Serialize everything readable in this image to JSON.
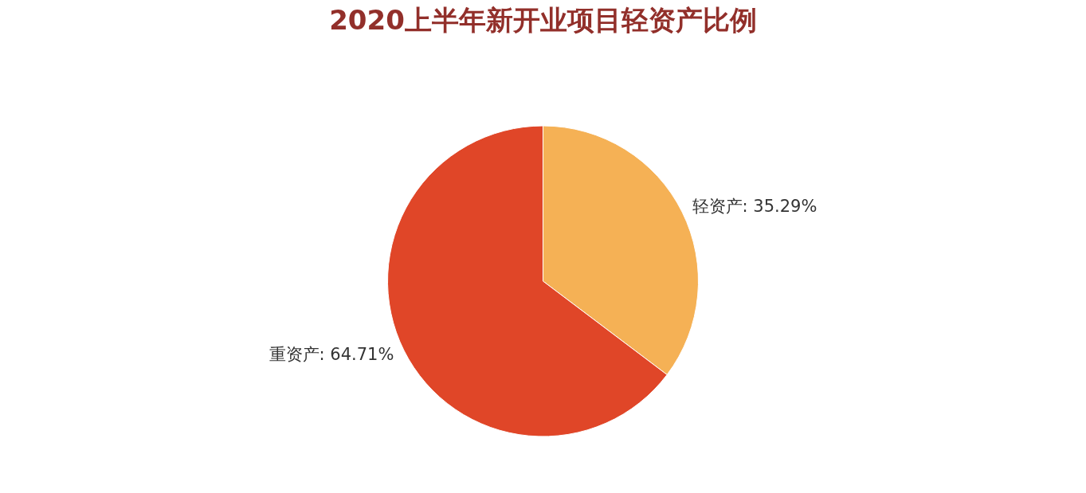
{
  "chart_data": {
    "type": "pie",
    "title": "2020上半年新开业项目轻资产比例",
    "categories": [
      "轻资产",
      "重资产"
    ],
    "values": [
      35.29,
      64.71
    ],
    "colors": [
      "#f5b155",
      "#e04628"
    ],
    "value_labels": [
      "35.29%",
      "64.71%"
    ],
    "legend": false
  }
}
